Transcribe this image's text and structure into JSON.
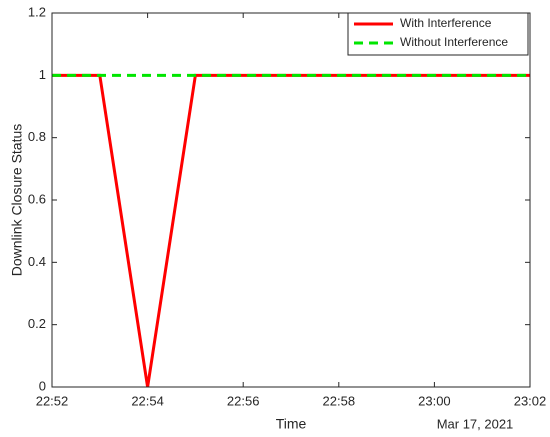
{
  "chart_data": {
    "type": "line",
    "xlabel": "Time",
    "ylabel": "Downlink Closure Status",
    "x_date_label": "Mar 17, 2021",
    "x": [
      "22:52",
      "22:53",
      "22:54",
      "22:55",
      "22:56",
      "22:57",
      "22:58",
      "22:59",
      "23:00",
      "23:01",
      "23:02"
    ],
    "series": [
      {
        "name": "With Interference",
        "color": "#ff0000",
        "dash": "solid",
        "values": [
          1,
          1,
          0,
          1,
          1,
          1,
          1,
          1,
          1,
          1,
          1
        ]
      },
      {
        "name": "Without Interference",
        "color": "#00e600",
        "dash": "dashed",
        "values": [
          1,
          1,
          1,
          1,
          1,
          1,
          1,
          1,
          1,
          1,
          1
        ]
      }
    ],
    "xlim": [
      "22:52",
      "23:02"
    ],
    "xticks": [
      "22:52",
      "22:54",
      "22:56",
      "22:58",
      "23:00",
      "23:02"
    ],
    "ylim": [
      0,
      1.2
    ],
    "yticks": [
      0,
      0.2,
      0.4,
      0.6,
      0.8,
      1,
      1.2
    ],
    "grid": false,
    "legend": "top-right"
  }
}
